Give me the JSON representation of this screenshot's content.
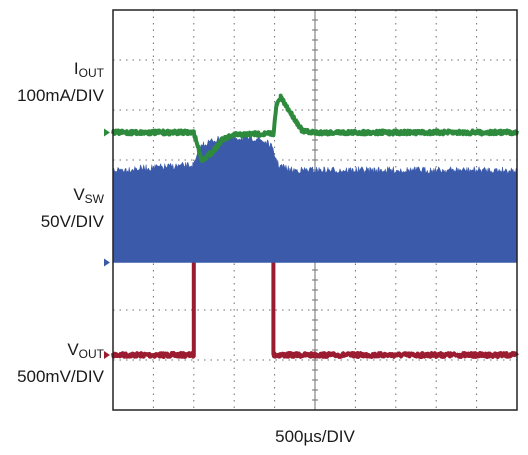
{
  "chart_data": {
    "type": "line",
    "xlabel": "500µs/DIV",
    "grid": true,
    "x_divisions": 10,
    "y_divisions": 8,
    "time_per_div_us": 500,
    "colors": {
      "i_out": "#9b1b30",
      "v_sw": "#3b5aa9",
      "v_out": "#2e8b3e",
      "grid": "#6f6f6f",
      "frame": "#222222"
    },
    "series": [
      {
        "key": "i_out",
        "name_main": "I",
        "name_sub": "OUT",
        "scale": "100mA/DIV",
        "ground_div": 6.9,
        "x_div": [
          0,
          2.0,
          2.0,
          2.05,
          2.3,
          2.6,
          3.1,
          3.6,
          3.97,
          3.97,
          10
        ],
        "value_div": [
          0,
          0,
          2.1,
          2.2,
          2.35,
          2.4,
          2.42,
          2.42,
          2.42,
          0,
          0
        ],
        "noise_div": 0.04
      },
      {
        "key": "v_sw",
        "name_main": "V",
        "name_sub": "SW",
        "scale": "50V/DIV",
        "ground_div": 5.05,
        "band_lower_div": 5.05,
        "x_div": [
          0,
          2.0,
          2.2,
          2.5,
          3.0,
          3.6,
          3.9,
          4.1,
          4.4,
          10
        ],
        "value_div": [
          1.85,
          1.95,
          2.35,
          2.45,
          2.5,
          2.48,
          2.35,
          1.95,
          1.85,
          1.85
        ],
        "noise_div": 0.07
      },
      {
        "key": "v_out",
        "name_main": "V",
        "name_sub": "OUT",
        "scale": "500mV/DIV",
        "ground_div": 2.45,
        "x_div": [
          0,
          2.0,
          2.2,
          2.45,
          2.7,
          3.0,
          3.5,
          3.97,
          4.05,
          4.15,
          4.35,
          4.7,
          5.0,
          10
        ],
        "value_div": [
          0,
          0,
          -0.55,
          -0.4,
          -0.15,
          -0.05,
          -0.03,
          -0.02,
          0.55,
          0.7,
          0.45,
          0.02,
          0,
          0
        ],
        "noise_div": 0.04
      }
    ]
  }
}
